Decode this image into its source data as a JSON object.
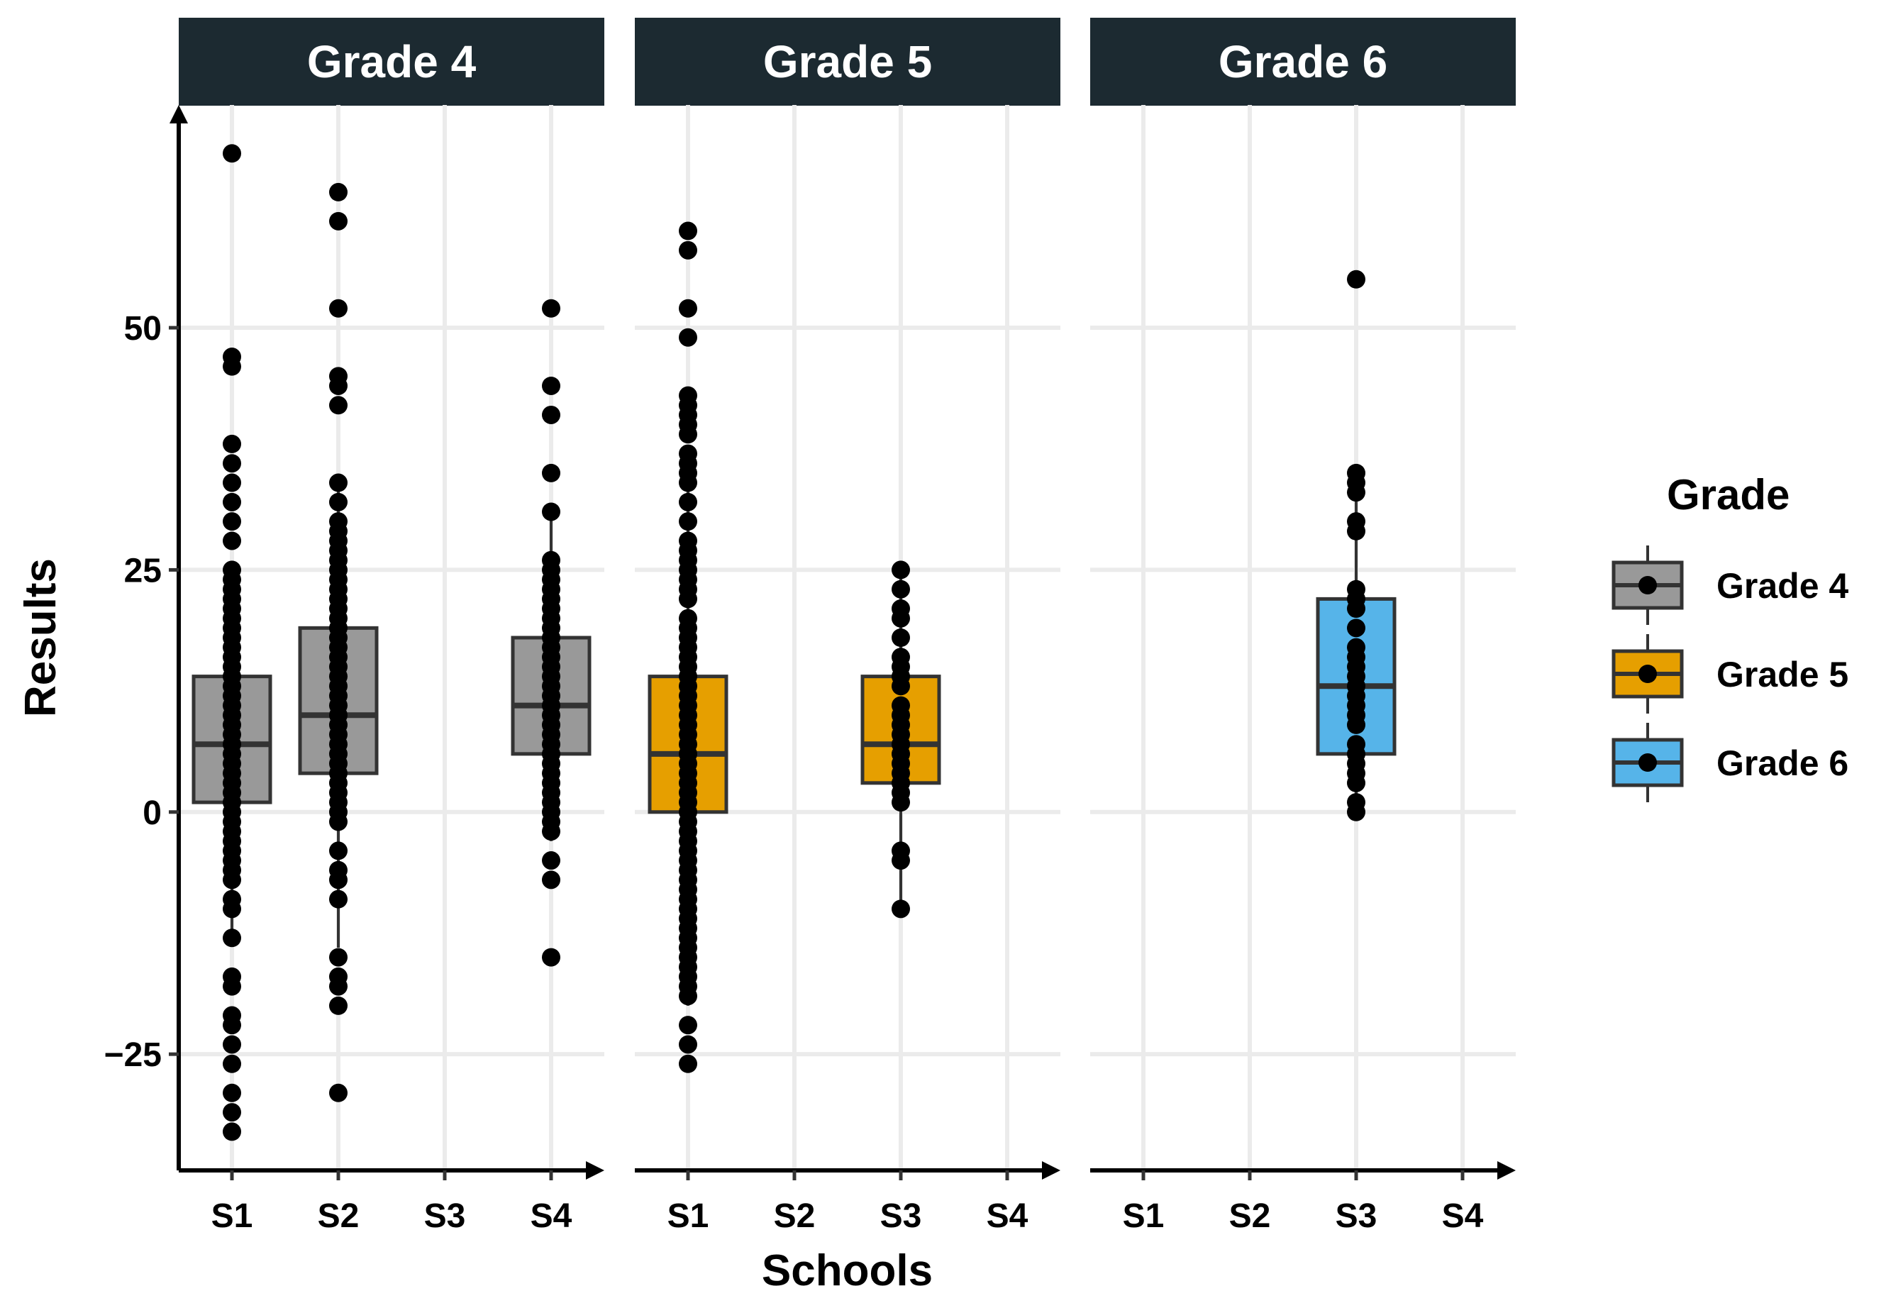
{
  "chart_data": {
    "type": "boxplot",
    "xlabel": "Schools",
    "ylabel": "Results",
    "ylim": [
      -37,
      73
    ],
    "yticks": [
      -25,
      0,
      25,
      50
    ],
    "ytick_labels": [
      "−25",
      "0",
      "25",
      "50"
    ],
    "categories": [
      "S1",
      "S2",
      "S3",
      "S4"
    ],
    "grid": "major, light gray",
    "legend": {
      "title": "Grade",
      "placement": "right",
      "entries": [
        "Grade 4",
        "Grade 5",
        "Grade 6"
      ]
    },
    "colors": {
      "Grade 4": "#999999",
      "Grade 5": "#E69F00",
      "Grade 6": "#56B4E9",
      "strip": "#1c2a31",
      "grid": "#ebebeb"
    },
    "facets": [
      {
        "label": "Grade 4",
        "boxes": [
          {
            "school": "S1",
            "q1": 1,
            "median": 7,
            "q3": 14,
            "whisker_low": -13,
            "whisker_high": 25,
            "points": [
              68,
              47,
              46,
              38,
              36,
              34,
              32,
              30,
              28,
              25,
              24,
              23,
              22,
              21,
              20,
              19,
              18,
              17,
              16,
              15,
              14,
              13,
              12,
              11,
              10,
              9,
              8,
              7,
              6,
              5,
              4,
              3,
              2,
              1,
              0,
              -1,
              -2,
              -3,
              -4,
              -5,
              -6,
              -7,
              -9,
              -10,
              -13,
              -17,
              -18,
              -21,
              -22,
              -24,
              -26,
              -29,
              -31,
              -33
            ]
          },
          {
            "school": "S2",
            "q1": 4,
            "median": 10,
            "q3": 19,
            "whisker_low": -14,
            "whisker_high": 34,
            "points": [
              64,
              61,
              52,
              45,
              44,
              42,
              34,
              32,
              30,
              29,
              28,
              27,
              26,
              25,
              24,
              23,
              22,
              21,
              20,
              19,
              18,
              17,
              16,
              15,
              14,
              13,
              12,
              11,
              10,
              9,
              8,
              7,
              6,
              5,
              4,
              3,
              2,
              1,
              0,
              -1,
              -4,
              -6,
              -7,
              -9,
              -15,
              -17,
              -18,
              -20,
              -29
            ]
          },
          {
            "school": "S4",
            "q1": 6,
            "median": 11,
            "q3": 18,
            "whisker_low": -3,
            "whisker_high": 31,
            "points": [
              52,
              44,
              41,
              35,
              31,
              26,
              25,
              24,
              23,
              22,
              21,
              20,
              19,
              18,
              17,
              16,
              15,
              14,
              13,
              12,
              11,
              10,
              9,
              8,
              7,
              6,
              5,
              4,
              3,
              2,
              1,
              0,
              -1,
              -2,
              -5,
              -7,
              -15
            ]
          }
        ]
      },
      {
        "label": "Grade 5",
        "boxes": [
          {
            "school": "S1",
            "q1": 0,
            "median": 6,
            "q3": 14,
            "whisker_low": -20,
            "whisker_high": 35,
            "points": [
              60,
              58,
              52,
              49,
              43,
              42,
              41,
              40,
              39,
              37,
              36,
              35,
              34,
              32,
              30,
              28,
              27,
              26,
              25,
              24,
              23,
              22,
              20,
              19,
              18,
              17,
              16,
              15,
              14,
              13,
              12,
              11,
              10,
              9,
              8,
              7,
              6,
              5,
              4,
              3,
              2,
              1,
              0,
              -1,
              -2,
              -3,
              -4,
              -5,
              -6,
              -7,
              -8,
              -9,
              -10,
              -11,
              -12,
              -13,
              -14,
              -15,
              -16,
              -17,
              -18,
              -19,
              -22,
              -24,
              -26
            ]
          },
          {
            "school": "S3",
            "q1": 3,
            "median": 7,
            "q3": 14,
            "whisker_low": -10,
            "whisker_high": 25,
            "points": [
              25,
              23,
              21,
              20,
              18,
              16,
              15,
              14,
              13,
              11,
              10,
              9,
              8,
              7,
              6,
              5,
              4,
              3,
              2,
              1,
              -4,
              -5,
              -10
            ]
          }
        ]
      },
      {
        "label": "Grade 6",
        "boxes": [
          {
            "school": "S3",
            "q1": 6,
            "median": 13,
            "q3": 22,
            "whisker_low": 0,
            "whisker_high": 35,
            "points": [
              55,
              35,
              34,
              33,
              30,
              29,
              23,
              22,
              21,
              19,
              17,
              16,
              15,
              14,
              13,
              12,
              11,
              10,
              9,
              7,
              6,
              5,
              4,
              3,
              1,
              0
            ]
          }
        ]
      }
    ]
  }
}
